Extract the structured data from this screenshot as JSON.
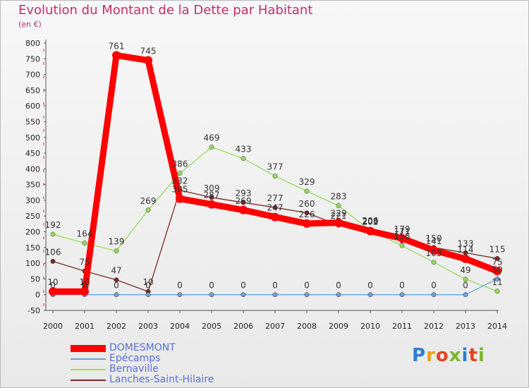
{
  "title": "Evolution du Montant de la Dette par Habitant",
  "subtitle": "(en €)",
  "logo": {
    "text": "Proxiti",
    "colors": [
      "#2a7fd1",
      "#e6a11d",
      "#e0451f",
      "#7db52c",
      "#2a7fd1",
      "#e0451f",
      "#7db52c"
    ]
  },
  "chart_data": {
    "type": "line",
    "title": "Evolution du Montant de la Dette par Habitant",
    "subtitle": "(en €)",
    "x": [
      "2000",
      "2001",
      "2002",
      "2003",
      "2004",
      "2005",
      "2006",
      "2007",
      "2008",
      "2009",
      "2010",
      "2011",
      "2012",
      "2013",
      "2014"
    ],
    "ylim": [
      -50,
      800
    ],
    "yticks": [
      -50,
      0,
      50,
      100,
      150,
      200,
      250,
      300,
      350,
      400,
      450,
      500,
      550,
      600,
      650,
      700,
      750,
      800
    ],
    "grid": false,
    "legend_placement": "bottom-left",
    "series": [
      {
        "name": "DOMESMONT",
        "color": "#ff0000",
        "values": [
          10,
          10,
          761,
          745,
          305,
          287,
          269,
          247,
          226,
          229,
          202,
          179,
          141,
          114,
          75
        ],
        "labels": [
          "10",
          "10",
          "761",
          "745",
          "305",
          "287",
          "269",
          "247",
          "226",
          "229",
          "202",
          "179",
          "141",
          "114",
          "75"
        ]
      },
      {
        "name": "Epécamps",
        "color": "#6aa1d8",
        "values": [
          0,
          0,
          0,
          0,
          0,
          0,
          0,
          0,
          0,
          0,
          0,
          0,
          0,
          0,
          50
        ],
        "labels": [
          "0",
          "0",
          "0",
          "0",
          "0",
          "0",
          "0",
          "0",
          "0",
          "0",
          "0",
          "0",
          "0",
          "0",
          "50"
        ]
      },
      {
        "name": "Bernaville",
        "color": "#99d95f",
        "values": [
          192,
          164,
          139,
          269,
          386,
          469,
          433,
          377,
          329,
          283,
          203,
          156,
          103,
          49,
          11
        ],
        "labels": [
          "192",
          "164",
          "139",
          "269",
          "386",
          "469",
          "433",
          "377",
          "329",
          "283",
          "203",
          "156",
          "103",
          "49",
          "11"
        ]
      },
      {
        "name": "Lanches-Saint-Hilaire",
        "color": "#7a2a2a",
        "values": [
          106,
          75,
          47,
          10,
          332,
          309,
          293,
          277,
          260,
          221,
          206,
          171,
          150,
          133,
          115
        ],
        "labels": [
          "106",
          "75",
          "47",
          "10",
          "332",
          "309",
          "293",
          "277",
          "260",
          "221",
          "206",
          "171",
          "150",
          "133",
          "115"
        ]
      }
    ]
  }
}
